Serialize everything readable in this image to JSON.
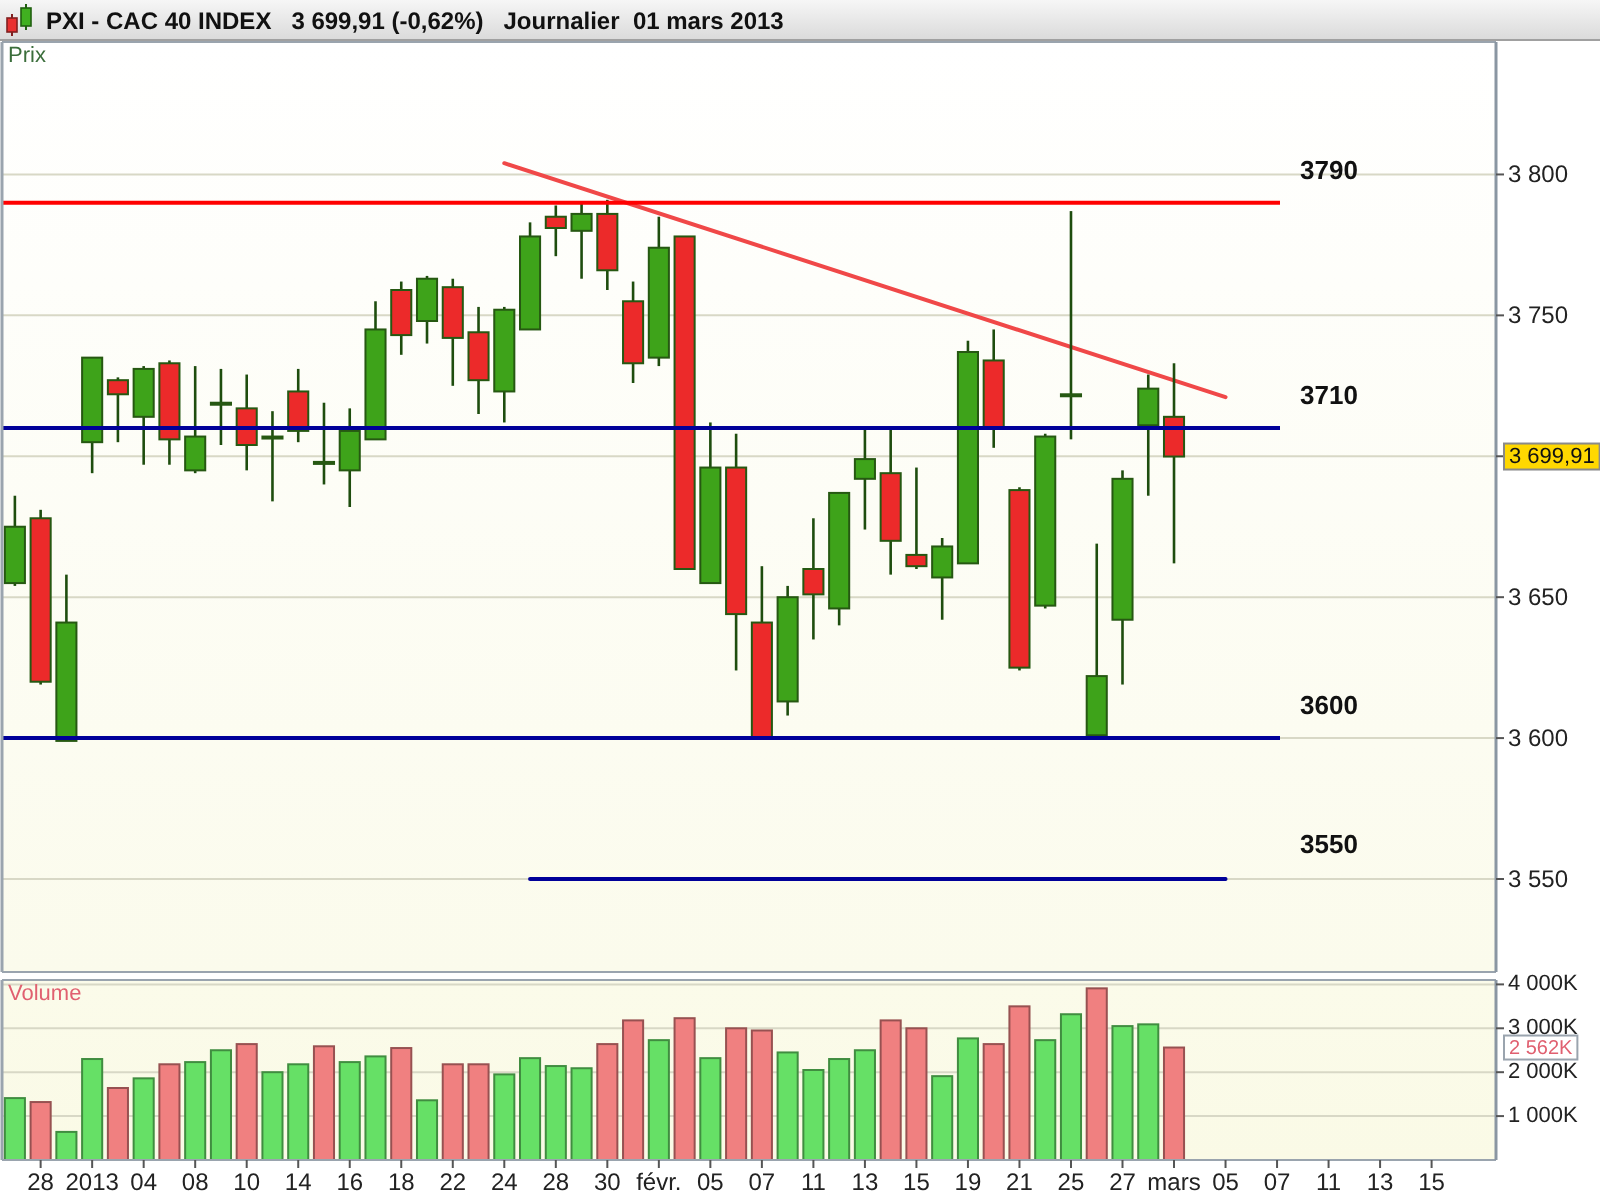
{
  "chart_data": [
    {
      "type": "candlestick",
      "title": "PXI - CAC 40 INDEX   3 699,91 (-0,62%)   Journalier  01 mars 2013",
      "ylabel": "Prix",
      "categories": [
        null,
        null,
        null,
        null,
        null,
        null,
        null,
        null,
        null,
        null,
        null,
        null,
        null,
        null,
        null,
        null,
        null,
        null,
        null,
        null,
        null,
        null,
        null,
        null,
        null,
        null,
        null,
        null,
        null,
        null,
        null,
        null,
        null,
        null,
        null,
        null,
        null,
        null,
        null,
        null,
        null,
        null,
        null,
        null,
        null,
        null,
        null,
        null,
        null,
        null,
        null,
        null,
        null,
        null,
        null,
        null,
        null,
        null
      ],
      "ohlc": [
        [
          3655,
          3686,
          3654,
          3675
        ],
        [
          3678,
          3681,
          3619,
          3620
        ],
        [
          3599,
          3658,
          3599,
          3641
        ],
        [
          3705,
          3735,
          3694,
          3735
        ],
        [
          3727,
          3728,
          3705,
          3722
        ],
        [
          3714,
          3732,
          3697,
          3731
        ],
        [
          3733,
          3734,
          3697,
          3706
        ],
        [
          3695,
          3732,
          3694,
          3707
        ],
        [
          3719,
          3731,
          3704,
          3719
        ],
        [
          3717,
          3729,
          3695,
          3704
        ],
        [
          3707,
          3716,
          3684,
          3707
        ],
        [
          3723,
          3731,
          3705,
          3709
        ],
        [
          3698,
          3719,
          3690,
          3698
        ],
        [
          3695,
          3717,
          3682,
          3709
        ],
        [
          3706,
          3755,
          3706,
          3745
        ],
        [
          3759,
          3762,
          3736,
          3743
        ],
        [
          3748,
          3764,
          3740,
          3763
        ],
        [
          3760,
          3763,
          3725,
          3742
        ],
        [
          3744,
          3753,
          3715,
          3727
        ],
        [
          3723,
          3753,
          3712,
          3752
        ],
        [
          3745,
          3783,
          3745,
          3778
        ],
        [
          3785,
          3789,
          3771,
          3781
        ],
        [
          3780,
          3790,
          3763,
          3786
        ],
        [
          3786,
          3791,
          3759,
          3766
        ],
        [
          3755,
          3762,
          3726,
          3733
        ],
        [
          3735,
          3785,
          3732,
          3774
        ],
        [
          3778,
          3778,
          3660,
          3660
        ],
        [
          3655,
          3712,
          3655,
          3696
        ],
        [
          3696,
          3708,
          3624,
          3644
        ],
        [
          3641,
          3661,
          3600,
          3600
        ],
        [
          3613,
          3654,
          3608,
          3650
        ],
        [
          3660,
          3678,
          3635,
          3651
        ],
        [
          3646,
          3687,
          3640,
          3687
        ],
        [
          3692,
          3710,
          3674,
          3699
        ],
        [
          3694,
          3710,
          3658,
          3670
        ],
        [
          3665,
          3696,
          3660,
          3661
        ],
        [
          3657,
          3671,
          3642,
          3668
        ],
        [
          3662,
          3741,
          3662,
          3737
        ],
        [
          3734,
          3745,
          3703,
          3710
        ],
        [
          3688,
          3689,
          3624,
          3625
        ],
        [
          3647,
          3708,
          3646,
          3707
        ],
        [
          3722,
          3787,
          3706,
          3722
        ],
        [
          3601,
          3669,
          3600,
          3622
        ],
        [
          3642,
          3695,
          3619,
          3692
        ],
        [
          3711,
          3729,
          3686,
          3724
        ],
        [
          3714,
          3733,
          3662,
          3699.91
        ],
        null,
        null,
        null,
        null,
        null,
        null,
        null,
        null,
        null,
        null,
        null,
        null
      ],
      "series": [
        {
          "type": "line",
          "color": "#f04848",
          "values": [
            null,
            null,
            null,
            null,
            null,
            null,
            null,
            null,
            null,
            null,
            null,
            null,
            null,
            null,
            null,
            null,
            null,
            null,
            null,
            3804,
            null,
            null,
            null,
            null,
            null,
            null,
            null,
            null,
            null,
            null,
            null,
            null,
            null,
            null,
            null,
            null,
            null,
            null,
            null,
            null,
            null,
            null,
            null,
            null,
            null,
            null,
            null,
            3721,
            null,
            null,
            null,
            null,
            null,
            null,
            null,
            null,
            null,
            null
          ]
        },
        {
          "type": "line",
          "name": "3550",
          "color": "#000099",
          "values": [
            null,
            null,
            null,
            null,
            null,
            null,
            null,
            null,
            null,
            null,
            null,
            null,
            null,
            null,
            null,
            null,
            null,
            null,
            null,
            null,
            3550,
            null,
            null,
            null,
            null,
            null,
            null,
            null,
            null,
            null,
            null,
            null,
            null,
            null,
            null,
            null,
            null,
            null,
            null,
            null,
            null,
            null,
            null,
            null,
            null,
            null,
            null,
            3550,
            null,
            null,
            null,
            null,
            null,
            null,
            null,
            null,
            null,
            null
          ]
        }
      ],
      "ref_lines": [
        {
          "axis": "y",
          "value": 3790,
          "label": "3790",
          "color": "#ff0000"
        },
        {
          "axis": "y",
          "value": 3710,
          "label": "3710",
          "color": "#000099"
        },
        {
          "axis": "y",
          "value": 3600,
          "label": "3600",
          "color": "#000099"
        }
      ],
      "annotations": [
        "3 699,91"
      ],
      "ylim": [
        3517,
        3847
      ],
      "yticks": [
        {
          "value": 3550,
          "label": "3 550"
        },
        {
          "value": 3600,
          "label": "3 600"
        },
        {
          "value": 3650,
          "label": "3 650"
        },
        {
          "value": 3700,
          "label": null
        },
        {
          "value": 3750,
          "label": "3 750"
        },
        {
          "value": 3800,
          "label": "3 800"
        }
      ],
      "grid": "y",
      "tick_labels": "y"
    },
    {
      "type": "bar",
      "ylabel": "Volume",
      "categories": [
        null,
        "28",
        null,
        "2013",
        null,
        "04",
        null,
        "08",
        null,
        "10",
        null,
        "14",
        null,
        "16",
        null,
        "18",
        null,
        "22",
        null,
        "24",
        null,
        "28",
        null,
        "30",
        null,
        "févr.",
        null,
        "05",
        null,
        "07",
        null,
        "11",
        null,
        "13",
        null,
        "15",
        null,
        "19",
        null,
        "21",
        null,
        "25",
        null,
        "27",
        null,
        "mars",
        null,
        "05",
        null,
        "07",
        null,
        "11",
        null,
        "13",
        null,
        "15",
        null,
        null
      ],
      "values": [
        1410,
        1320,
        640,
        2300,
        1640,
        1860,
        2180,
        2230,
        2500,
        2640,
        2000,
        2180,
        2590,
        2230,
        2360,
        2550,
        1360,
        2180,
        2180,
        1950,
        2320,
        2140,
        2090,
        2640,
        3180,
        2730,
        3230,
        2320,
        3000,
        2950,
        2450,
        2050,
        2300,
        2500,
        3180,
        3000,
        1910,
        2770,
        2640,
        3500,
        2730,
        3320,
        3910,
        3050,
        3090,
        2562,
        null,
        null,
        null,
        null,
        null,
        null,
        null,
        null,
        null,
        null,
        null,
        null
      ],
      "colors": [
        "#66e066",
        "#f08080",
        "#66e066",
        "#66e066",
        "#f08080",
        "#66e066",
        "#f08080",
        "#66e066",
        "#66e066",
        "#f08080",
        "#66e066",
        "#66e066",
        "#f08080",
        "#66e066",
        "#66e066",
        "#f08080",
        "#66e066",
        "#f08080",
        "#f08080",
        "#66e066",
        "#66e066",
        "#66e066",
        "#66e066",
        "#f08080",
        "#f08080",
        "#66e066",
        "#f08080",
        "#66e066",
        "#f08080",
        "#f08080",
        "#66e066",
        "#66e066",
        "#66e066",
        "#66e066",
        "#f08080",
        "#f08080",
        "#66e066",
        "#66e066",
        "#f08080",
        "#f08080",
        "#66e066",
        "#66e066",
        "#f08080",
        "#66e066",
        "#66e066",
        "#f08080",
        null,
        null,
        null,
        null,
        null,
        null,
        null,
        null,
        null,
        null,
        null,
        null
      ],
      "annotations": [
        "2 562K"
      ],
      "ylim": [
        0,
        4100
      ],
      "yticks": [
        {
          "value": 1000,
          "label": "1 000K"
        },
        {
          "value": 2000,
          "label": "2 000K"
        },
        {
          "value": 3000,
          "label": "3 000K"
        },
        {
          "value": 4000,
          "label": "4 000K"
        }
      ],
      "grid": "y"
    }
  ]
}
